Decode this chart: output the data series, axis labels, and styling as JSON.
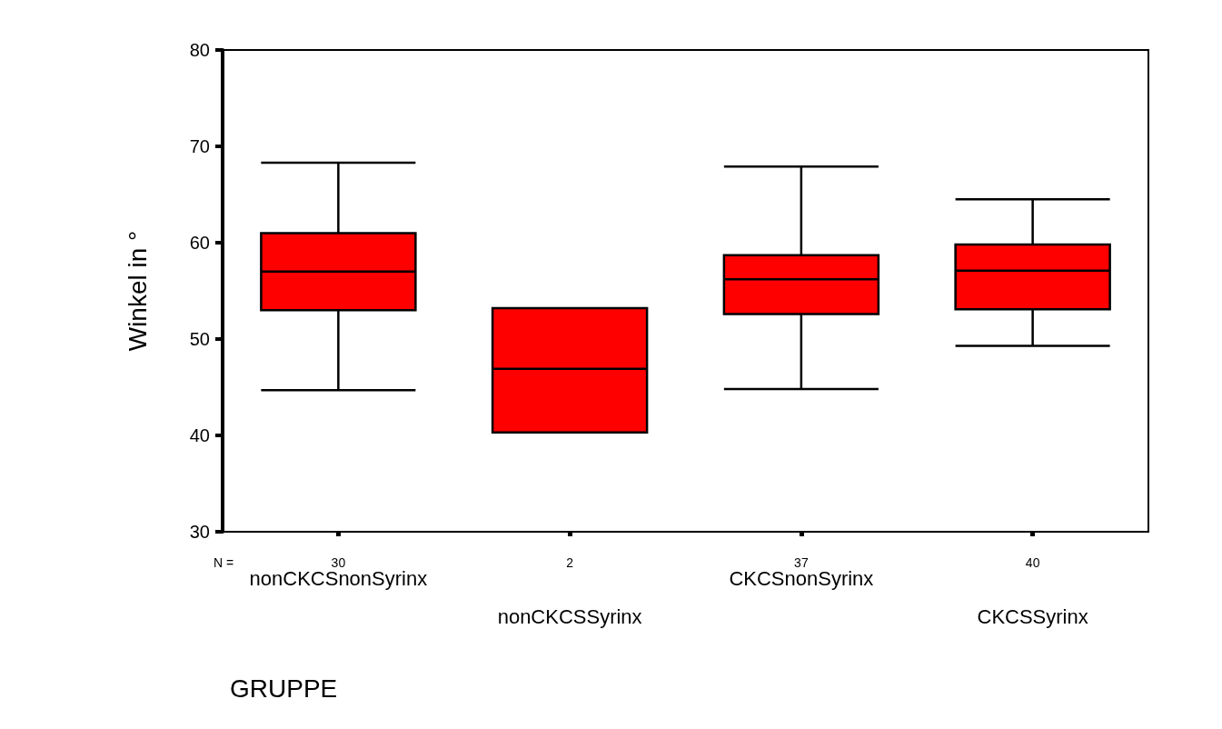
{
  "chart_data": {
    "type": "box",
    "ylabel": "Winkel in °",
    "xlabel": "GRUPPE",
    "categories": [
      "nonCKCSnonSyrinx",
      "nonCKCSSyrinx",
      "CKCSnonSyrinx",
      "CKCSSyrinx"
    ],
    "boxes": [
      {
        "low": 44.7,
        "q1": 53.0,
        "median": 57.0,
        "q3": 61.0,
        "high": 68.3
      },
      {
        "low": 40.3,
        "q1": 40.3,
        "median": 46.9,
        "q3": 53.2,
        "high": 53.2
      },
      {
        "low": 44.8,
        "q1": 52.6,
        "median": 56.2,
        "q3": 58.7,
        "high": 67.9
      },
      {
        "low": 49.3,
        "q1": 53.1,
        "median": 57.1,
        "q3": 59.8,
        "high": 64.5
      }
    ],
    "color": "#ff0000",
    "ylim": [
      30,
      80
    ],
    "yticks": [
      30,
      40,
      50,
      60,
      70,
      80
    ],
    "grid": false,
    "annotations": [
      "N =",
      "30",
      "2",
      "37",
      "40"
    ]
  }
}
